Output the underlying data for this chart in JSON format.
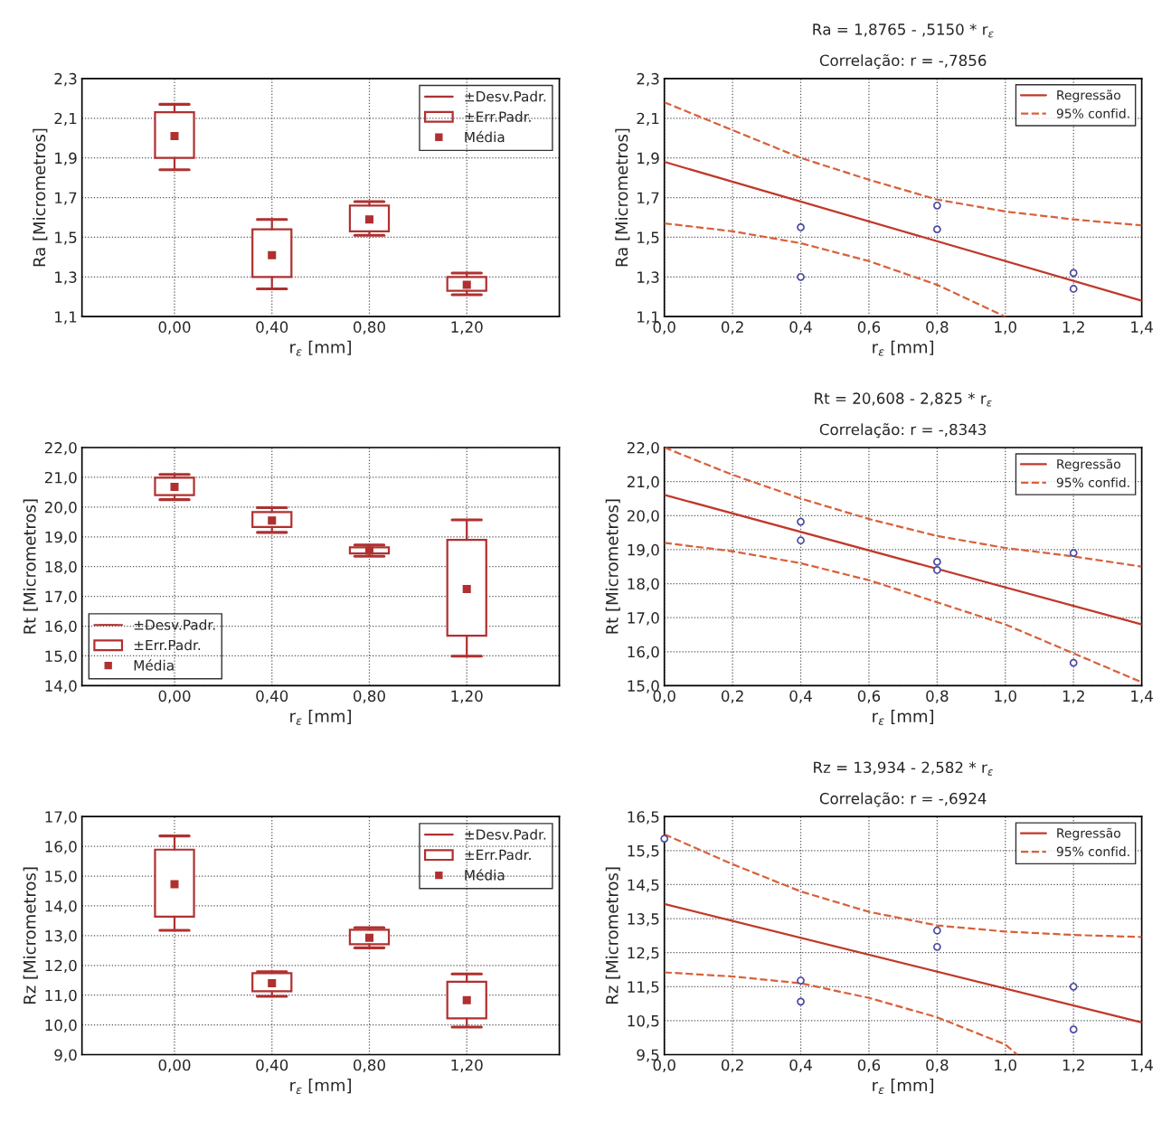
{
  "chart_data": [
    {
      "type": "box",
      "categories": [
        "0,00",
        "0,40",
        "0,80",
        "1,20"
      ],
      "xlabel": "r$_{ε}$ [mm]",
      "ylabel": "Ra [Micrometros]",
      "ylim": [
        1.1,
        2.3
      ],
      "yticks": [
        {
          "value": 1.1,
          "label": "1,1"
        },
        {
          "value": 1.3,
          "label": "1,3"
        },
        {
          "value": 1.5,
          "label": "1,5"
        },
        {
          "value": 1.7,
          "label": "1,7"
        },
        {
          "value": 1.9,
          "label": "1,9"
        },
        {
          "value": 2.1,
          "label": "2,1"
        },
        {
          "value": 2.3,
          "label": "2,3"
        }
      ],
      "grid": true,
      "legend": "top right",
      "annotations": [
        "±Desv.Padr.",
        "Média"
      ],
      "series": [
        {
          "name": "±Err.Padr.",
          "color": "#b03030",
          "boxes": [
            {
              "low": 1.84,
              "q1": 1.9,
              "median": 2.01,
              "q3": 2.13,
              "high": 2.17
            },
            {
              "low": 1.24,
              "q1": 1.3,
              "median": 1.41,
              "q3": 1.54,
              "high": 1.59
            },
            {
              "low": 1.51,
              "q1": 1.53,
              "median": 1.59,
              "q3": 1.66,
              "high": 1.68
            },
            {
              "low": 1.21,
              "q1": 1.23,
              "median": 1.26,
              "q3": 1.3,
              "high": 1.32
            }
          ]
        }
      ]
    },
    {
      "type": "scatter",
      "title": "Ra = 1,8765 - ,5150 * r$_{ε}$",
      "subtitle": "Correlação: r = -,7856",
      "xlabel": "r$_{ε}$ [mm]",
      "ylabel": "Ra [Micrometros]",
      "xlim": [
        0,
        1.4
      ],
      "xticks": [
        {
          "value": 0,
          "label": "0,0"
        },
        {
          "value": 0.2,
          "label": "0,2"
        },
        {
          "value": 0.4,
          "label": "0,4"
        },
        {
          "value": 0.6,
          "label": "0,6"
        },
        {
          "value": 0.8,
          "label": "0,8"
        },
        {
          "value": 1.0,
          "label": "1,0"
        },
        {
          "value": 1.2,
          "label": "1,2"
        },
        {
          "value": 1.4,
          "label": "1,4"
        }
      ],
      "ylim": [
        1.1,
        2.3
      ],
      "yticks": [
        {
          "value": 1.1,
          "label": "1,1"
        },
        {
          "value": 1.3,
          "label": "1,3"
        },
        {
          "value": 1.5,
          "label": "1,5"
        },
        {
          "value": 1.7,
          "label": "1,7"
        },
        {
          "value": 1.9,
          "label": "1,9"
        },
        {
          "value": 2.1,
          "label": "2,1"
        },
        {
          "value": 2.3,
          "label": "2,3"
        }
      ],
      "grid": true,
      "legend": "top right",
      "series": [
        {
          "type": "scatter",
          "x": [
            0.4,
            0.4,
            0.8,
            0.8,
            1.2,
            1.2
          ],
          "values": [
            1.55,
            1.3,
            1.66,
            1.54,
            1.32,
            1.24
          ],
          "color": "#4a4aa0",
          "marker": "circle"
        },
        {
          "type": "line",
          "name": "Regressão",
          "x": [
            0,
            1.4
          ],
          "values": [
            1.88,
            1.18
          ],
          "color": "#c0392b",
          "line_style": "solid"
        },
        {
          "type": "line",
          "name": "95% confid.",
          "x": [
            0,
            0.2,
            0.4,
            0.6,
            0.8,
            1.0,
            1.2,
            1.4
          ],
          "values": [
            2.18,
            2.04,
            1.9,
            1.79,
            1.69,
            1.63,
            1.59,
            1.56
          ],
          "color": "#d9603a",
          "line_style": "dashed"
        },
        {
          "type": "line",
          "x": [
            0,
            0.2,
            0.4,
            0.6,
            0.8,
            1.0
          ],
          "values": [
            1.57,
            1.53,
            1.47,
            1.38,
            1.26,
            1.1
          ],
          "color": "#d9603a",
          "line_style": "dashed"
        }
      ]
    },
    {
      "type": "box",
      "categories": [
        "0,00",
        "0,40",
        "0,80",
        "1,20"
      ],
      "xlabel": "r$_{ε}$ [mm]",
      "ylabel": "Rt [Micrometros]",
      "ylim": [
        14,
        22
      ],
      "yticks": [
        {
          "value": 14,
          "label": "14,0"
        },
        {
          "value": 15,
          "label": "15,0"
        },
        {
          "value": 16,
          "label": "16,0"
        },
        {
          "value": 17,
          "label": "17,0"
        },
        {
          "value": 18,
          "label": "18,0"
        },
        {
          "value": 19,
          "label": "19,0"
        },
        {
          "value": 20,
          "label": "20,0"
        },
        {
          "value": 21,
          "label": "21,0"
        },
        {
          "value": 22,
          "label": "22,0"
        }
      ],
      "grid": true,
      "legend": "bottom left",
      "annotations": [
        "±Desv.Padr.",
        "Média"
      ],
      "series": [
        {
          "name": "±Err.Padr.",
          "color": "#b03030",
          "boxes": [
            {
              "low": 20.25,
              "q1": 20.4,
              "median": 20.68,
              "q3": 20.99,
              "high": 21.1
            },
            {
              "low": 19.15,
              "q1": 19.33,
              "median": 19.55,
              "q3": 19.83,
              "high": 19.98
            },
            {
              "low": 18.35,
              "q1": 18.44,
              "median": 18.54,
              "q3": 18.65,
              "high": 18.73
            },
            {
              "low": 14.99,
              "q1": 15.68,
              "median": 17.25,
              "q3": 18.9,
              "high": 19.57
            }
          ]
        }
      ]
    },
    {
      "type": "scatter",
      "title": "Rt = 20,608 - 2,825 * r$_{ε}$",
      "subtitle": "Correlação: r = -,8343",
      "xlabel": "r$_{ε}$ [mm]",
      "ylabel": "Rt [Micrometros]",
      "xlim": [
        0,
        1.4
      ],
      "xticks": [
        {
          "value": 0,
          "label": "0,0"
        },
        {
          "value": 0.2,
          "label": "0,2"
        },
        {
          "value": 0.4,
          "label": "0,4"
        },
        {
          "value": 0.6,
          "label": "0,6"
        },
        {
          "value": 0.8,
          "label": "0,8"
        },
        {
          "value": 1.0,
          "label": "1,0"
        },
        {
          "value": 1.2,
          "label": "1,2"
        },
        {
          "value": 1.4,
          "label": "1,4"
        }
      ],
      "ylim": [
        15,
        22
      ],
      "yticks": [
        {
          "value": 15,
          "label": "15,0"
        },
        {
          "value": 16,
          "label": "16,0"
        },
        {
          "value": 17,
          "label": "17,0"
        },
        {
          "value": 18,
          "label": "18,0"
        },
        {
          "value": 19,
          "label": "19,0"
        },
        {
          "value": 20,
          "label": "20,0"
        },
        {
          "value": 21,
          "label": "21,0"
        },
        {
          "value": 22,
          "label": "22,0"
        }
      ],
      "grid": true,
      "legend": "top right",
      "series": [
        {
          "type": "scatter",
          "x": [
            0.4,
            0.4,
            0.8,
            0.8,
            1.2,
            1.2
          ],
          "values": [
            19.82,
            19.27,
            18.64,
            18.4,
            18.9,
            15.67
          ],
          "color": "#4a4aa0",
          "marker": "circle"
        },
        {
          "type": "line",
          "name": "Regressão",
          "x": [
            0,
            1.4
          ],
          "values": [
            20.61,
            16.8
          ],
          "color": "#c0392b",
          "line_style": "solid"
        },
        {
          "type": "line",
          "name": "95% confid.",
          "x": [
            0,
            0.2,
            0.4,
            0.6,
            0.8,
            1.0,
            1.2,
            1.4
          ],
          "values": [
            22.0,
            21.2,
            20.5,
            19.9,
            19.4,
            19.05,
            18.8,
            18.5
          ],
          "color": "#d9603a",
          "line_style": "dashed"
        },
        {
          "type": "line",
          "x": [
            0,
            0.2,
            0.4,
            0.6,
            0.8,
            1.0,
            1.2,
            1.4
          ],
          "values": [
            19.2,
            18.95,
            18.6,
            18.1,
            17.45,
            16.8,
            15.95,
            15.1
          ],
          "color": "#d9603a",
          "line_style": "dashed"
        }
      ]
    },
    {
      "type": "box",
      "categories": [
        "0,00",
        "0,40",
        "0,80",
        "1,20"
      ],
      "xlabel": "r$_{ε}$ [mm]",
      "ylabel": "Rz [Micrometros]",
      "ylim": [
        9,
        17
      ],
      "yticks": [
        {
          "value": 9,
          "label": "9,0"
        },
        {
          "value": 10,
          "label": "10,0"
        },
        {
          "value": 11,
          "label": "11,0"
        },
        {
          "value": 12,
          "label": "12,0"
        },
        {
          "value": 13,
          "label": "13,0"
        },
        {
          "value": 14,
          "label": "14,0"
        },
        {
          "value": 15,
          "label": "15,0"
        },
        {
          "value": 16,
          "label": "16,0"
        },
        {
          "value": 17,
          "label": "17,0"
        }
      ],
      "grid": true,
      "legend": "top right",
      "annotations": [
        "±Desv.Padr.",
        "Média"
      ],
      "series": [
        {
          "name": "±Err.Padr.",
          "color": "#b03030",
          "boxes": [
            {
              "low": 13.18,
              "q1": 13.64,
              "median": 14.73,
              "q3": 15.89,
              "high": 16.35
            },
            {
              "low": 10.96,
              "q1": 11.13,
              "median": 11.4,
              "q3": 11.74,
              "high": 11.79
            },
            {
              "low": 12.59,
              "q1": 12.71,
              "median": 12.93,
              "q3": 13.2,
              "high": 13.27
            },
            {
              "low": 9.93,
              "q1": 10.22,
              "median": 10.83,
              "q3": 11.45,
              "high": 11.71
            }
          ]
        }
      ]
    },
    {
      "type": "scatter",
      "title": "Rz = 13,934 - 2,582 * r$_{ε}$",
      "subtitle": "Correlação: r = -,6924",
      "xlabel": "r$_{ε}$ [mm]",
      "ylabel": "Rz [Micrometros]",
      "xlim": [
        0,
        1.4
      ],
      "xticks": [
        {
          "value": 0,
          "label": "0,0"
        },
        {
          "value": 0.2,
          "label": "0,2"
        },
        {
          "value": 0.4,
          "label": "0,4"
        },
        {
          "value": 0.6,
          "label": "0,6"
        },
        {
          "value": 0.8,
          "label": "0,8"
        },
        {
          "value": 1.0,
          "label": "1,0"
        },
        {
          "value": 1.2,
          "label": "1,2"
        },
        {
          "value": 1.4,
          "label": "1,4"
        }
      ],
      "ylim": [
        9.5,
        16.5
      ],
      "yticks": [
        {
          "value": 9.5,
          "label": "9,5"
        },
        {
          "value": 10.5,
          "label": "10,5"
        },
        {
          "value": 11.5,
          "label": "11,5"
        },
        {
          "value": 12.5,
          "label": "12,5"
        },
        {
          "value": 13.5,
          "label": "13,5"
        },
        {
          "value": 14.5,
          "label": "14,5"
        },
        {
          "value": 15.5,
          "label": "15,5"
        },
        {
          "value": 16.5,
          "label": "16,5"
        }
      ],
      "grid": true,
      "legend": "top right",
      "series": [
        {
          "type": "scatter",
          "x": [
            0,
            0.4,
            0.4,
            0.8,
            0.8,
            1.2,
            1.2
          ],
          "values": [
            15.85,
            11.68,
            11.06,
            13.15,
            12.67,
            11.5,
            10.24
          ],
          "color": "#4a4aa0",
          "marker": "circle"
        },
        {
          "type": "line",
          "name": "Regressão",
          "x": [
            0,
            1.4
          ],
          "values": [
            13.93,
            10.45
          ],
          "color": "#c0392b",
          "line_style": "solid"
        },
        {
          "type": "line",
          "name": "95% confid.",
          "x": [
            0,
            0.2,
            0.4,
            0.6,
            0.8,
            1.0,
            1.2,
            1.4
          ],
          "values": [
            15.98,
            15.1,
            14.3,
            13.7,
            13.3,
            13.12,
            13.02,
            12.96
          ],
          "color": "#d9603a",
          "line_style": "dashed"
        },
        {
          "type": "line",
          "x": [
            0,
            0.2,
            0.4,
            0.6,
            0.8,
            1.0,
            1.035
          ],
          "values": [
            11.92,
            11.8,
            11.6,
            11.17,
            10.6,
            9.8,
            9.5
          ],
          "color": "#d9603a",
          "line_style": "dashed"
        }
      ]
    }
  ]
}
